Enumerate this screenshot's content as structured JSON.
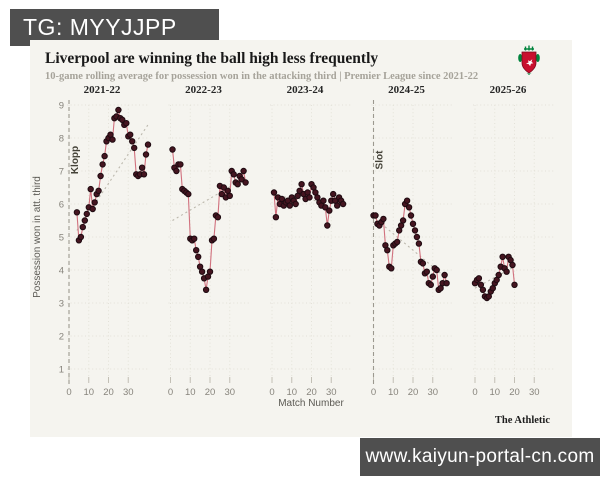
{
  "overlays": {
    "top_banner": "TG: MYYJJPP",
    "bottom_banner": "www.kaiyun-portal-cn.com"
  },
  "header": {
    "title": "Liverpool are winning the ball high less frequently",
    "subtitle": "10-game rolling average for possession won in the attacking third | Premier League since 2021-22",
    "crest": "liverpool-crest"
  },
  "footer": {
    "attribution": "The Athletic"
  },
  "chart_data": {
    "type": "line",
    "small_multiples": true,
    "title": "Liverpool are winning the ball high less frequently",
    "xlabel": "Match Number",
    "ylabel": "Possession won in att. third",
    "ylim": [
      1,
      9
    ],
    "yticks": [
      1,
      2,
      3,
      4,
      5,
      6,
      7,
      8,
      9
    ],
    "xticks": [
      0,
      10,
      20,
      30
    ],
    "grid": true,
    "style": {
      "background": "#f5f4ef",
      "grid_color": "#e3e1d8",
      "line_color": "#d1717e",
      "point_fill": "#451520",
      "point_stroke": "#1e0b11",
      "trend_color": "#bcb8ad",
      "manager_line_color": "#9c988f",
      "crest_red": "#c8102e",
      "crest_green": "#00843d"
    },
    "panels": [
      {
        "label": "2021-22",
        "manager_marker": {
          "name": "Klopp",
          "x": 0
        },
        "trend": {
          "x": [
            4,
            40
          ],
          "y": [
            5.2,
            8.4
          ]
        },
        "start_x": 4,
        "values": [
          5.75,
          4.9,
          5.0,
          5.3,
          5.5,
          5.7,
          5.9,
          6.45,
          5.85,
          6.05,
          6.3,
          6.4,
          6.85,
          7.2,
          7.45,
          7.9,
          8.0,
          8.1,
          7.95,
          8.6,
          8.65,
          8.85,
          8.6,
          8.55,
          8.4,
          8.45,
          8.05,
          8.1,
          7.9,
          7.7,
          6.9,
          6.85,
          6.9,
          7.1,
          6.9,
          7.5,
          7.8
        ]
      },
      {
        "label": "2022-23",
        "manager_marker": null,
        "trend": {
          "x": [
            1,
            38
          ],
          "y": [
            5.5,
            6.8
          ]
        },
        "start_x": 1,
        "values": [
          7.65,
          7.1,
          7.0,
          7.2,
          7.2,
          6.45,
          6.4,
          6.35,
          6.3,
          4.95,
          4.9,
          4.95,
          4.6,
          4.4,
          4.1,
          3.95,
          3.75,
          3.4,
          3.8,
          3.95,
          4.9,
          4.95,
          5.65,
          5.6,
          6.55,
          6.3,
          6.5,
          6.2,
          6.4,
          6.25,
          7.0,
          6.9,
          6.65,
          6.6,
          6.85,
          6.75,
          7.0,
          6.65
        ]
      },
      {
        "label": "2023-24",
        "manager_marker": null,
        "trend": {
          "x": [
            1,
            36
          ],
          "y": [
            6.25,
            6.0
          ]
        },
        "start_x": 1,
        "values": [
          6.35,
          5.6,
          6.2,
          6.0,
          6.15,
          5.95,
          6.05,
          6.1,
          5.95,
          6.2,
          6.1,
          6.0,
          6.25,
          6.4,
          6.6,
          6.3,
          6.15,
          6.35,
          6.2,
          6.6,
          6.5,
          6.35,
          6.2,
          6.05,
          5.95,
          6.1,
          5.9,
          5.35,
          5.8,
          6.1,
          6.3,
          6.1,
          5.95,
          6.2,
          6.1,
          6.0
        ]
      },
      {
        "label": "2024-25",
        "manager_marker": {
          "name": "Slot",
          "x": 0
        },
        "trend": {
          "x": [
            0,
            37
          ],
          "y": [
            5.6,
            3.75
          ]
        },
        "start_x": 0,
        "values": [
          5.65,
          5.65,
          5.4,
          5.35,
          5.45,
          5.55,
          4.75,
          4.6,
          4.1,
          4.05,
          4.75,
          4.8,
          4.85,
          5.2,
          5.35,
          5.5,
          6.0,
          6.1,
          5.9,
          5.65,
          5.4,
          5.2,
          5.0,
          4.8,
          4.25,
          4.2,
          3.9,
          3.95,
          3.6,
          3.55,
          3.8,
          4.05,
          4.0,
          3.4,
          3.45,
          3.6,
          3.85,
          3.6
        ]
      },
      {
        "label": "2025-26",
        "manager_marker": null,
        "trend": {
          "x": [
            0,
            20
          ],
          "y": [
            3.45,
            4.1
          ]
        },
        "start_x": 0,
        "values": [
          3.6,
          3.7,
          3.75,
          3.55,
          3.4,
          3.2,
          3.15,
          3.2,
          3.35,
          3.45,
          3.6,
          3.7,
          3.85,
          4.1,
          4.4,
          4.05,
          3.95,
          4.4,
          4.3,
          4.15,
          3.55
        ]
      }
    ]
  }
}
